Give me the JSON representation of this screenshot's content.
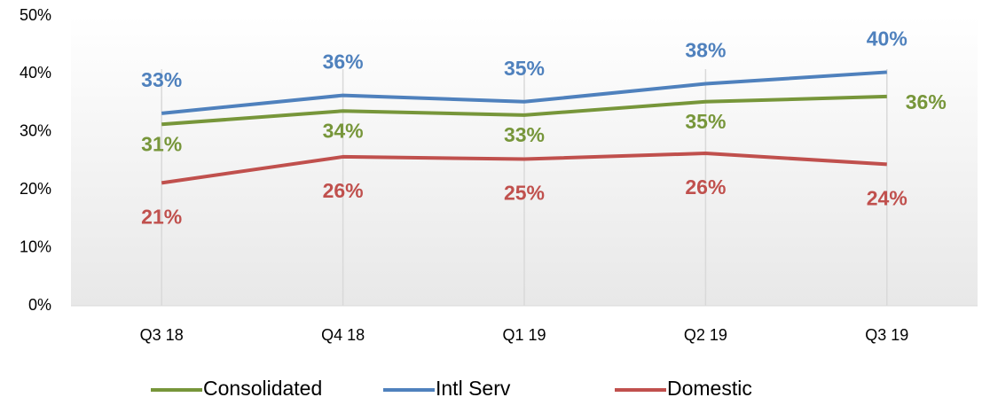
{
  "chart_data": {
    "type": "line",
    "categories": [
      "Q3 18",
      "Q4 18",
      "Q1 19",
      "Q2 19",
      "Q3 19"
    ],
    "series": [
      {
        "name": "Consolidated",
        "color": "#77963a",
        "values": [
          31.3,
          33.6,
          32.9,
          35.2,
          36.1
        ],
        "value_labels": [
          "31%",
          "34%",
          "33%",
          "35%",
          "36%"
        ]
      },
      {
        "name": "Intl Serv",
        "color": "#4f81bd",
        "values": [
          33.2,
          36.3,
          35.2,
          38.3,
          40.3
        ],
        "value_labels": [
          "33%",
          "36%",
          "35%",
          "38%",
          "40%"
        ]
      },
      {
        "name": "Domestic",
        "color": "#c0504d",
        "values": [
          21.2,
          25.7,
          25.3,
          26.3,
          24.4
        ],
        "value_labels": [
          "21%",
          "26%",
          "25%",
          "26%",
          "24%"
        ]
      }
    ],
    "ylim": [
      0,
      50
    ],
    "yticks": [
      {
        "value": 0,
        "label": "0%"
      },
      {
        "value": 10,
        "label": "10%"
      },
      {
        "value": 20,
        "label": "20%"
      },
      {
        "value": 30,
        "label": "30%"
      },
      {
        "value": 40,
        "label": "40%"
      },
      {
        "value": 50,
        "label": "50%"
      }
    ],
    "legend": "bottom"
  }
}
